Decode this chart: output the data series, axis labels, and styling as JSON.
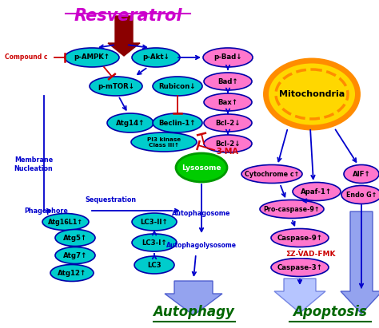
{
  "title": "Resveratrol",
  "title_color": "#CC00CC",
  "bg_color": "#FFFFFF",
  "autophagy_label": "Autophagy",
  "apoptosis_label": "Apoptosis",
  "label_color": "#006600",
  "cyan": "#00CCCC",
  "pink": "#FF77CC",
  "green": "#00CC00",
  "yellow": "#FFD700",
  "orange": "#FF8C00",
  "blue": "#0000CC",
  "red": "#CC0000",
  "darkred": "#8B0000"
}
